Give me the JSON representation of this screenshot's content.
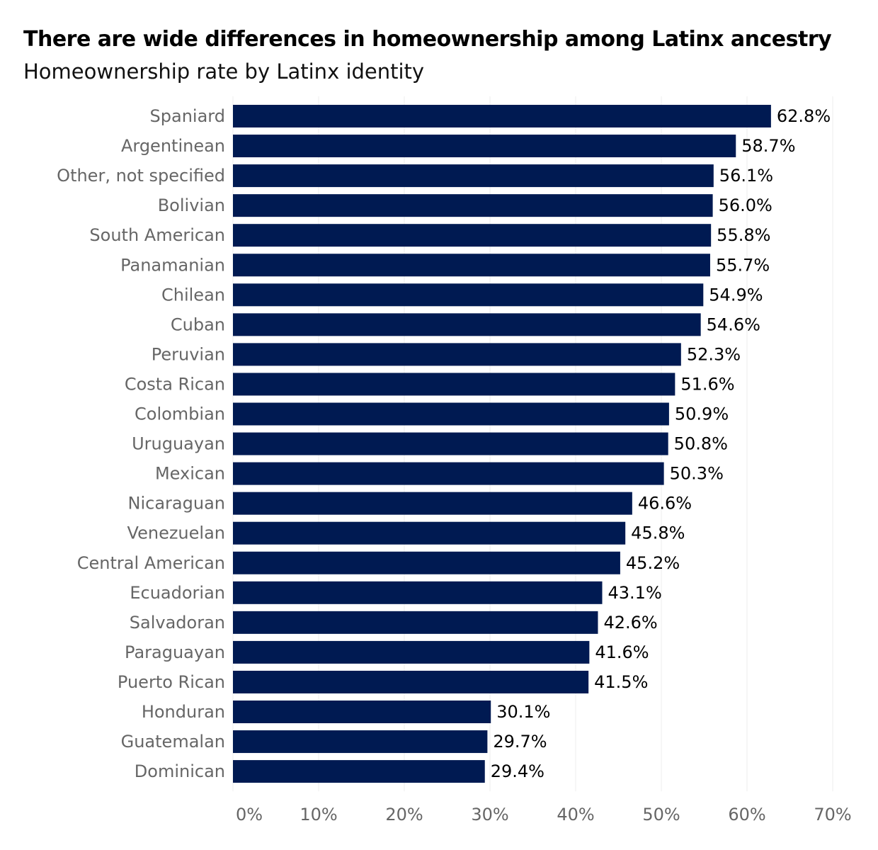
{
  "chart_data": {
    "type": "bar",
    "orientation": "horizontal",
    "title": "There are wide differences in homeownership among Latinx ancestry",
    "subtitle": "Homeownership rate by Latinx identity",
    "categories": [
      "Spaniard",
      "Argentinean",
      "Other, not specified",
      "Bolivian",
      "South American",
      "Panamanian",
      "Chilean",
      "Cuban",
      "Peruvian",
      "Costa Rican",
      "Colombian",
      "Uruguayan",
      "Mexican",
      "Nicaraguan",
      "Venezuelan",
      "Central American",
      "Ecuadorian",
      "Salvadoran",
      "Paraguayan",
      "Puerto Rican",
      "Honduran",
      "Guatemalan",
      "Dominican"
    ],
    "values": [
      62.8,
      58.7,
      56.1,
      56.0,
      55.8,
      55.7,
      54.9,
      54.6,
      52.3,
      51.6,
      50.9,
      50.8,
      50.3,
      46.6,
      45.8,
      45.2,
      43.1,
      42.6,
      41.6,
      41.5,
      30.1,
      29.7,
      29.4
    ],
    "value_labels": [
      "62.8%",
      "58.7%",
      "56.1%",
      "56.0%",
      "55.8%",
      "55.7%",
      "54.9%",
      "54.6%",
      "52.3%",
      "51.6%",
      "50.9%",
      "50.8%",
      "50.3%",
      "46.6%",
      "45.8%",
      "45.2%",
      "43.1%",
      "42.6%",
      "41.6%",
      "41.5%",
      "30.1%",
      "29.7%",
      "29.4%"
    ],
    "xlim": [
      0,
      70
    ],
    "xticks": [
      0,
      10,
      20,
      30,
      40,
      50,
      60,
      70
    ],
    "xtick_labels": [
      "0%",
      "10%",
      "20%",
      "30%",
      "40%",
      "50%",
      "60%",
      "70%"
    ],
    "xlabel": "",
    "ylabel": "",
    "grid": true,
    "legend": "none",
    "bar_color": "#001a52",
    "grid_color": "#ececec"
  }
}
